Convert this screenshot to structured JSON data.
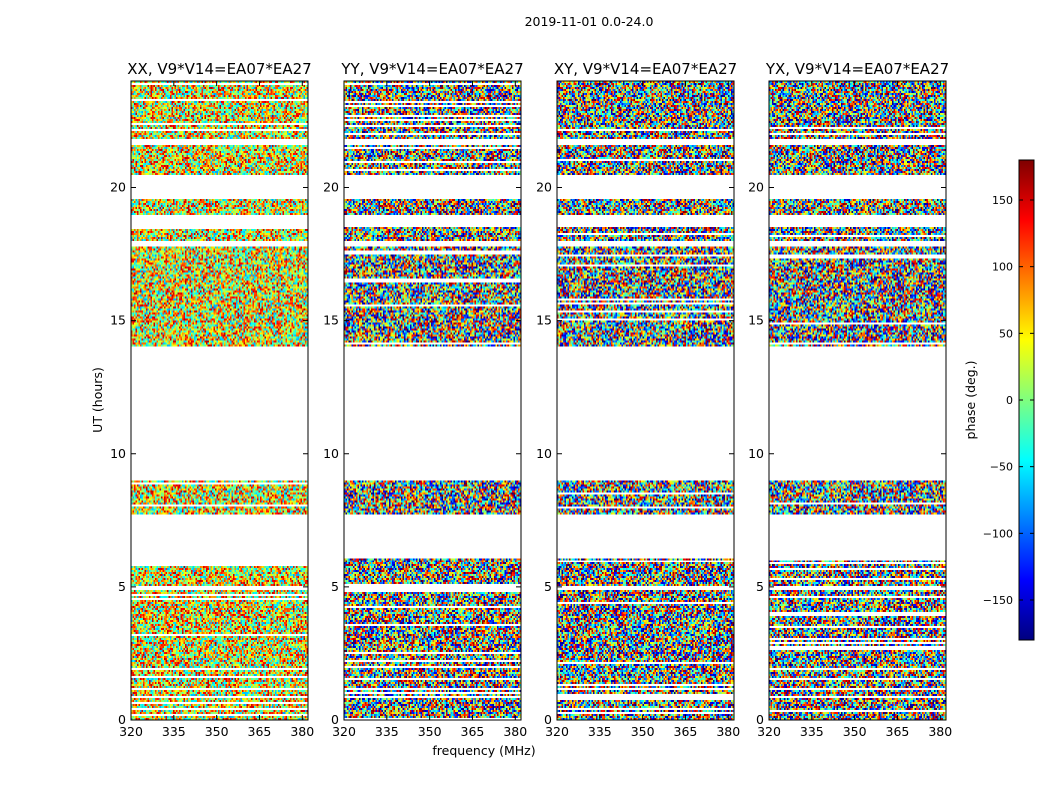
{
  "chart_data": {
    "type": "heatmap",
    "title": "2019-11-01 0.0-24.0",
    "xlabel": "frequency (MHz)",
    "ylabel": "UT (hours)",
    "xlim": [
      320,
      382
    ],
    "ylim": [
      0,
      24
    ],
    "x_ticks": [
      320,
      335,
      350,
      365,
      380
    ],
    "y_ticks": [
      0,
      5,
      10,
      15,
      20
    ],
    "colorbar": {
      "label": "phase (deg.)",
      "range": [
        -180,
        180
      ],
      "ticks": [
        -150,
        -100,
        -50,
        0,
        50,
        100,
        150
      ],
      "tick_labels": [
        "−150",
        "−100",
        "−50",
        "0",
        "50",
        "100",
        "150"
      ],
      "colormap": [
        "#00007f",
        "#0000ff",
        "#007fff",
        "#00ffff",
        "#7fff7f",
        "#ffff00",
        "#ff7f00",
        "#ff0000",
        "#7f0000"
      ]
    },
    "data_time_ranges_hours": [
      [
        0.0,
        0.8
      ],
      [
        0.9,
        1.1
      ],
      [
        1.2,
        4.9
      ],
      [
        5.0,
        6.1
      ],
      [
        7.7,
        9.0
      ],
      [
        14.0,
        17.8
      ],
      [
        18.0,
        18.5
      ],
      [
        19.0,
        19.6
      ],
      [
        20.5,
        21.6
      ],
      [
        21.8,
        24.0
      ]
    ],
    "panels": [
      {
        "title": "XX, V9*V14=EA07*EA27",
        "polarization": "XX",
        "dominant_phase_deg": 40,
        "spread_deg": 120
      },
      {
        "title": "YY, V9*V14=EA07*EA27",
        "polarization": "YY",
        "dominant_phase_deg": -170,
        "spread_deg": 180
      },
      {
        "title": "XY, V9*V14=EA07*EA27",
        "polarization": "XY",
        "dominant_phase_deg": 0,
        "spread_deg": 180
      },
      {
        "title": "YX, V9*V14=EA07*EA27",
        "polarization": "YX",
        "dominant_phase_deg": 0,
        "spread_deg": 180
      }
    ]
  }
}
